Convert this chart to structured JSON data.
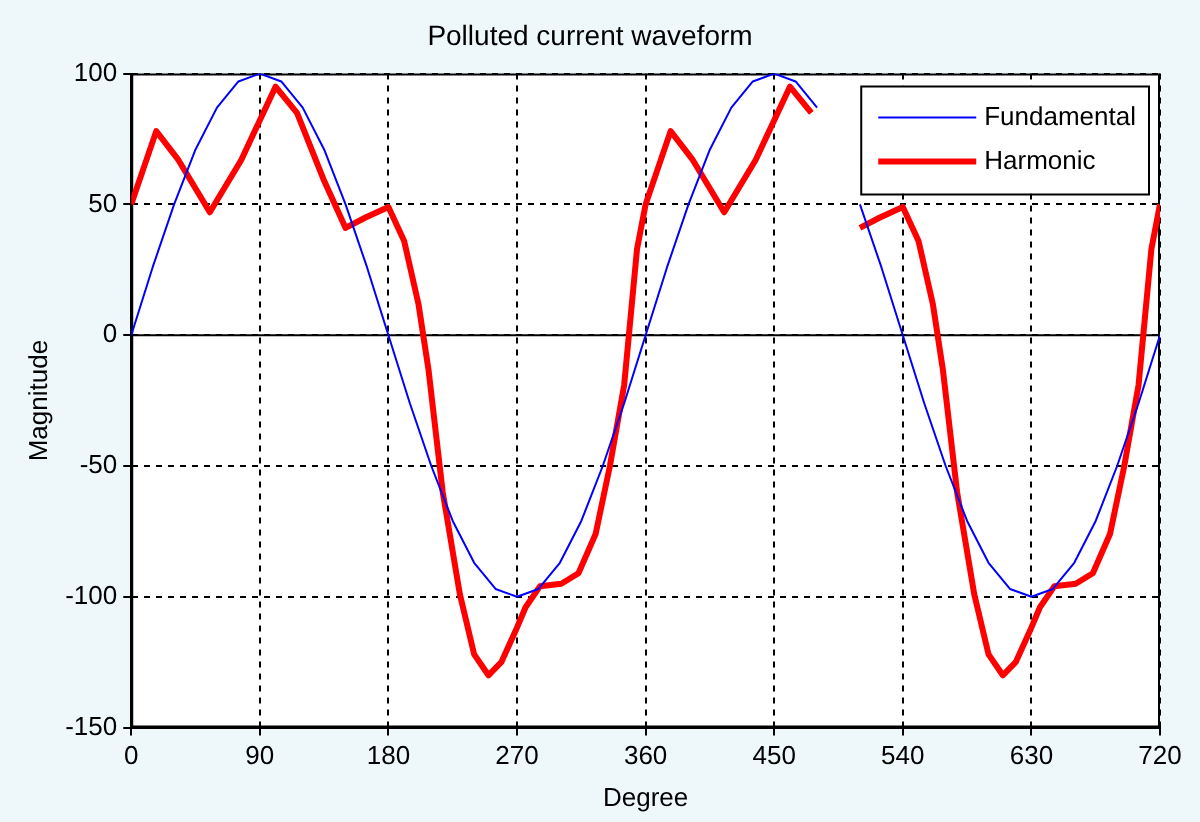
{
  "chart_data": {
    "type": "line",
    "title": "Polluted current waveform",
    "xlabel": "Degree",
    "ylabel": "Magnitude",
    "xlim": [
      0,
      720
    ],
    "xticks": [
      0,
      90,
      180,
      270,
      360,
      450,
      540,
      630,
      720
    ],
    "ylim": [
      -150,
      100
    ],
    "yticks": [
      -150,
      -100,
      -50,
      0,
      50,
      100
    ],
    "grid": true,
    "legend": "top right",
    "marker": "none",
    "line_style": "solid",
    "ref_lines": [
      {
        "axis": "y",
        "value": 0,
        "color": "#000000"
      }
    ],
    "series": [
      {
        "name": "Fundamental",
        "color": "#0000ff",
        "x": [
          0,
          15,
          30,
          45,
          60,
          75,
          90,
          105,
          120,
          135,
          150,
          165,
          180,
          195,
          210,
          225,
          240,
          255,
          270,
          285,
          300,
          315,
          330,
          345,
          360,
          375,
          390,
          405,
          420,
          435,
          450,
          465,
          480,
          495,
          510,
          525,
          540,
          555,
          570,
          585,
          600,
          615,
          630,
          645,
          660,
          675,
          690,
          705,
          720
        ],
        "values": [
          0,
          26,
          50,
          71,
          87,
          97,
          100,
          97,
          87,
          71,
          50,
          26,
          0,
          -26,
          -50,
          -71,
          -87,
          -97,
          -100,
          -97,
          -87,
          -71,
          -50,
          -26,
          0,
          26,
          50,
          71,
          87,
          97,
          100,
          97,
          87,
          null,
          50,
          26,
          0,
          -26,
          -50,
          -71,
          -87,
          -97,
          -100,
          -97,
          -87,
          -71,
          -50,
          -26,
          0
        ]
      },
      {
        "name": "Harmonic",
        "color": "#ff0000",
        "x": [
          0,
          17.5,
          33,
          55,
          77,
          101,
          116,
          135,
          150,
          164,
          180,
          191,
          201,
          208,
          218,
          230,
          240,
          250,
          259,
          269,
          276,
          286,
          301,
          313,
          325,
          335,
          345,
          354,
          360,
          377.5,
          393,
          415,
          437,
          461,
          476,
          495,
          510,
          524,
          540,
          551,
          561,
          568,
          578,
          590,
          600,
          610,
          619,
          629,
          636,
          646,
          661,
          673,
          685,
          695,
          705,
          714,
          720
        ],
        "values": [
          50,
          78,
          67,
          47,
          67,
          95,
          85,
          59,
          41,
          45,
          49,
          36,
          12,
          -13,
          -60,
          -99,
          -122,
          -130,
          -125,
          -113,
          -104,
          -96,
          -95,
          -91,
          -76,
          -50,
          -19,
          33,
          50,
          78,
          67,
          47,
          67,
          95,
          85,
          null,
          41,
          45,
          49,
          36,
          12,
          -13,
          -60,
          -99,
          -122,
          -130,
          -125,
          -113,
          -104,
          -96,
          -95,
          -91,
          -76,
          -50,
          -19,
          33,
          50
        ]
      }
    ]
  }
}
